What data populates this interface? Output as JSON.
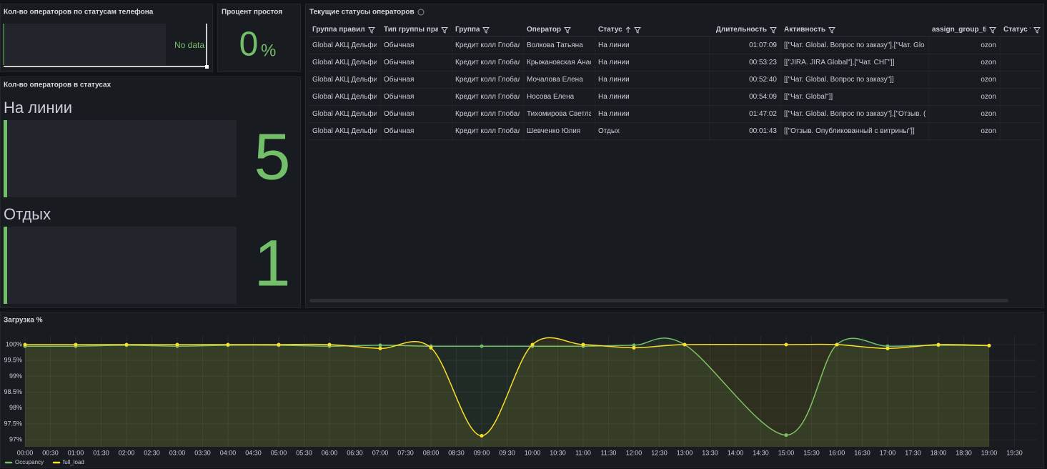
{
  "phone_status": {
    "title": "Кол-во операторов по статусам телефона",
    "no_data": "No data"
  },
  "idle": {
    "title": "Процент простоя",
    "value": 0,
    "unit": "%"
  },
  "status_counts": {
    "title": "Кол-во операторов в статусах",
    "items": [
      {
        "label": "На линии",
        "value": 5
      },
      {
        "label": "Отдых",
        "value": 1
      }
    ]
  },
  "table": {
    "title": "Текущие статусы операторов",
    "columns": [
      "Группа правил",
      "Тип группы прав",
      "Группа",
      "Оператор",
      "Статус",
      "Длительность",
      "Активность",
      "assign_group_ticl",
      "Статус теле"
    ],
    "sorted_column": "Статус",
    "rows": [
      [
        "Global АКЦ Дельфин",
        "Обычная",
        "Кредит колл Глобал",
        "Волкова Татьяна",
        "На линии",
        "01:07:09",
        "[[\"Чат. Global. Вопрос по заказу\"],[\"Чат. Glo",
        "ozon"
      ],
      [
        "Global АКЦ Дельфин",
        "Обычная",
        "Кредит колл Глобал",
        "Крыжановская Анас",
        "На линии",
        "00:53:23",
        "[[\"JIRA. JIRA Global\"],[\"Чат. СНГ\"]]",
        "ozon"
      ],
      [
        "Global АКЦ Дельфин",
        "Обычная",
        "Кредит колл Глобал",
        "Мочалова Елена",
        "На линии",
        "00:52:40",
        "[[\"Чат. Global. Вопрос по заказу\"]]",
        "ozon"
      ],
      [
        "Global АКЦ Дельфин",
        "Обычная",
        "Кредит колл Глобал",
        "Носова Елена",
        "На линии",
        "00:54:09",
        "[[\"Чат. Global\"]]",
        "ozon"
      ],
      [
        "Global АКЦ Дельфин",
        "Обычная",
        "Кредит колл Глобал",
        "Тихомирова Светлан",
        "На линии",
        "01:47:02",
        "[[\"Чат. Global. Вопрос по заказу\"],[\"Отзыв. (",
        "ozon"
      ],
      [
        "Global АКЦ Дельфин",
        "Обычная",
        "Кредит колл Глобал",
        "Шевченко Юлия",
        "Отдых",
        "00:01:43",
        "[[\"Отзыв. Опубликованный с витрины\"]]",
        "ozon"
      ]
    ]
  },
  "chart_data": {
    "type": "line",
    "title": "Загрузка %",
    "x": [
      "00:00",
      "01:00",
      "02:00",
      "03:00",
      "04:00",
      "05:00",
      "06:00",
      "07:00",
      "08:00",
      "09:00",
      "10:00",
      "11:00",
      "12:00",
      "13:00",
      "15:00",
      "16:00",
      "17:00",
      "18:00",
      "19:00"
    ],
    "series": [
      {
        "name": "Occupancy",
        "color": "#73bf69",
        "values": [
          99.95,
          99.95,
          99.98,
          99.95,
          99.98,
          99.98,
          99.95,
          99.98,
          99.95,
          99.95,
          99.95,
          99.95,
          99.98,
          100,
          97.15,
          100,
          99.95,
          99.98,
          99.97
        ]
      },
      {
        "name": "full_load",
        "color": "#fade2a",
        "values": [
          100,
          100,
          100,
          100,
          100,
          100,
          100,
          99.88,
          99.9,
          97.13,
          100,
          100,
          99.9,
          100,
          100,
          100,
          99.88,
          100,
          99.97
        ]
      }
    ],
    "xticks": [
      "00:00",
      "00:30",
      "01:00",
      "01:30",
      "02:00",
      "02:30",
      "03:00",
      "03:30",
      "04:00",
      "04:30",
      "05:00",
      "05:30",
      "06:00",
      "06:30",
      "07:00",
      "07:30",
      "08:00",
      "08:30",
      "09:00",
      "09:30",
      "10:00",
      "10:30",
      "11:00",
      "11:30",
      "12:00",
      "12:30",
      "13:00",
      "13:30",
      "14:00",
      "14:30",
      "15:00",
      "15:30",
      "16:00",
      "16:30",
      "17:00",
      "17:30",
      "18:00",
      "18:30",
      "19:00",
      "19:30"
    ],
    "ylim": [
      96.78,
      100.27
    ],
    "yticks": [
      {
        "value": 97,
        "label": "97%"
      },
      {
        "value": 97.5,
        "label": "97.5%"
      },
      {
        "value": 98,
        "label": "98%"
      },
      {
        "value": 98.5,
        "label": "98.5%"
      },
      {
        "value": 99,
        "label": "99%"
      },
      {
        "value": 99.5,
        "label": "99.5%"
      },
      {
        "value": 100,
        "label": "100%"
      }
    ],
    "grid": true,
    "legend": "bottom-left"
  }
}
